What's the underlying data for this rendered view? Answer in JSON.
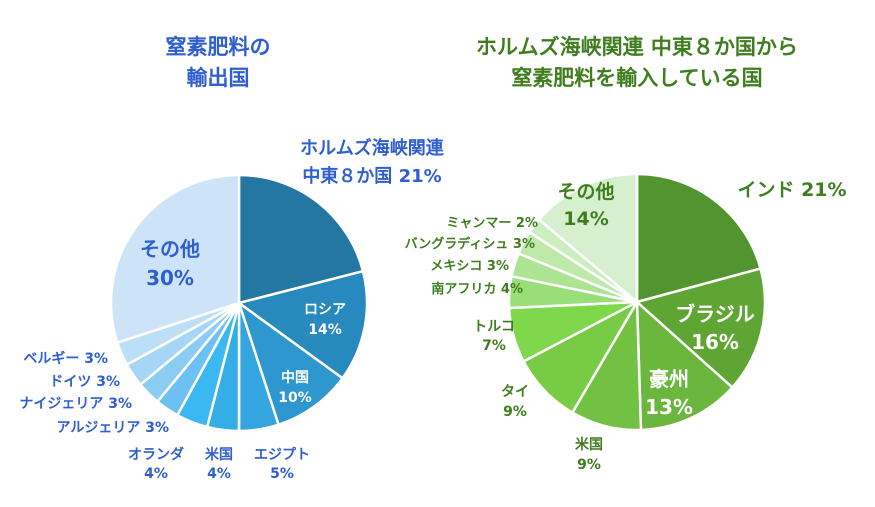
{
  "chart_data": [
    {
      "type": "pie",
      "title": [
        "窒素肥料の",
        "輸出国"
      ],
      "title_color": "#2f5fcf",
      "slices": [
        {
          "label": [
            "ホルムズ海峡関連",
            "中東８か国 21%"
          ],
          "value": 21,
          "color": "#2477a3"
        },
        {
          "label": [
            "ロシア",
            "14%"
          ],
          "value": 14,
          "color": "#2789bd"
        },
        {
          "label": [
            "中国",
            "10%"
          ],
          "value": 10,
          "color": "#2f97cf"
        },
        {
          "label": [
            "エジプト",
            "5%"
          ],
          "value": 5,
          "color": "#34a5de"
        },
        {
          "label": [
            "米国",
            "4%"
          ],
          "value": 4,
          "color": "#35ade6"
        },
        {
          "label": [
            "オランダ",
            "4%"
          ],
          "value": 4,
          "color": "#3bb8f2"
        },
        {
          "label": [
            "アルジェリア 3%"
          ],
          "value": 3,
          "color": "#6cc0f2"
        },
        {
          "label": [
            "ナイジェリア 3%"
          ],
          "value": 3,
          "color": "#8accf4"
        },
        {
          "label": [
            "ドイツ 3%"
          ],
          "value": 3,
          "color": "#a6d6f6"
        },
        {
          "label": [
            "ベルギー 3%"
          ],
          "value": 3,
          "color": "#bcdff8"
        },
        {
          "label": [
            "その他",
            "30%"
          ],
          "value": 30,
          "color": "#cce3f8"
        }
      ]
    },
    {
      "type": "pie",
      "title": [
        "ホルムズ海峡関連 中東８か国から",
        "窒素肥料を輸入している国"
      ],
      "title_color": "#3f8a1f",
      "slices": [
        {
          "label": [
            "インド 21%"
          ],
          "value": 21,
          "color": "#529430"
        },
        {
          "label": [
            "ブラジル",
            "16%"
          ],
          "value": 16,
          "color": "#5fa534"
        },
        {
          "label": [
            "豪州",
            "13%"
          ],
          "value": 13,
          "color": "#6bb63c"
        },
        {
          "label": [
            "米国",
            "9%"
          ],
          "value": 9,
          "color": "#72c142"
        },
        {
          "label": [
            "タイ",
            "9%"
          ],
          "value": 9,
          "color": "#78cb45"
        },
        {
          "label": [
            "トルコ",
            "7%"
          ],
          "value": 7,
          "color": "#7fd84c"
        },
        {
          "label": [
            "南アフリカ 4%"
          ],
          "value": 4,
          "color": "#9ade7a"
        },
        {
          "label": [
            "メキシコ 3%"
          ],
          "value": 3,
          "color": "#ace494"
        },
        {
          "label": [
            "バングラディシュ 3%"
          ],
          "value": 3,
          "color": "#bde9aa"
        },
        {
          "label": [
            "ミャンマー 2%"
          ],
          "value": 2,
          "color": "#cbeebf"
        },
        {
          "label": [
            "その他",
            "14%"
          ],
          "value": 14,
          "color": "#d6f0cf"
        }
      ]
    }
  ]
}
